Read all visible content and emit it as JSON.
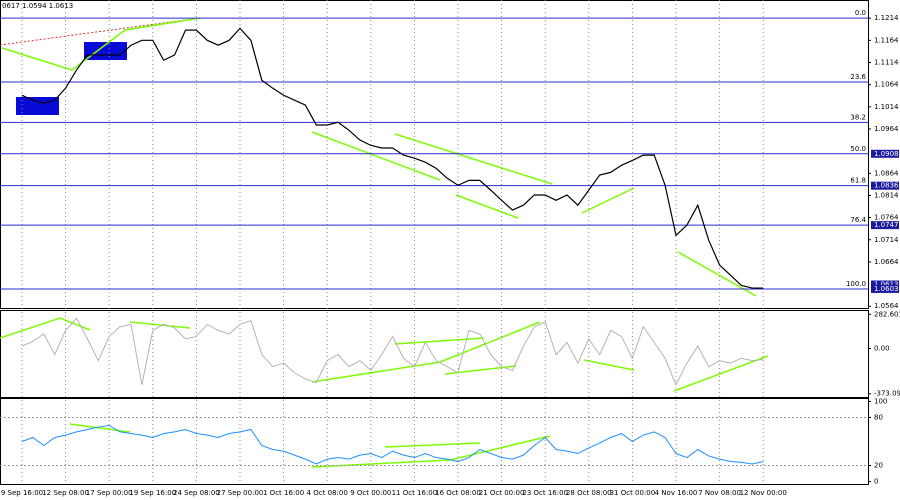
{
  "chart_data": [
    {
      "type": "line",
      "title": "0617 1.0594 1.0613",
      "color": "#000000",
      "categories": [
        "9 Sep 16:00",
        null,
        null,
        null,
        "12 Sep 08:00",
        null,
        null,
        null,
        "17 Sep 00:00",
        null,
        null,
        null,
        "19 Sep 16:00",
        null,
        null,
        null,
        "24 Sep 08:00",
        null,
        null,
        null,
        "27 Sep 00:00",
        null,
        null,
        null,
        "1 Oct 16:00",
        null,
        null,
        null,
        "4 Oct 08:00",
        null,
        null,
        null,
        "9 Oct 00:00",
        null,
        null,
        null,
        "11 Oct 16:00",
        null,
        null,
        null,
        "16 Oct 08:00",
        null,
        null,
        null,
        "21 Oct 00:00",
        null,
        null,
        null,
        "23 Oct 16:00",
        null,
        null,
        null,
        "28 Oct 08:00",
        null,
        null,
        null,
        "31 Oct 00:00",
        null,
        null,
        null,
        "4 Nov 16:00",
        null,
        null,
        null,
        "7 Nov 08:00",
        null,
        null,
        null,
        "12 Nov 00:00"
      ],
      "values": [
        1.104,
        1.1029,
        1.1022,
        1.1029,
        1.1056,
        1.1097,
        1.1131,
        1.1131,
        1.1131,
        1.1131,
        1.1153,
        1.1164,
        1.1164,
        1.1119,
        1.1131,
        1.1187,
        1.1187,
        1.1164,
        1.1153,
        1.1164,
        1.1191,
        1.1164,
        1.1074,
        1.1056,
        1.104,
        1.1029,
        1.1018,
        1.0973,
        1.0973,
        1.0979,
        1.0961,
        1.0939,
        1.0927,
        1.0921,
        1.0921,
        1.0905,
        1.0898,
        1.0889,
        1.0875,
        1.0853,
        1.0837,
        1.0848,
        1.0848,
        1.0826,
        1.0803,
        1.0781,
        1.0792,
        1.0815,
        1.0815,
        1.0803,
        1.0815,
        1.0792,
        1.0826,
        1.086,
        1.0866,
        1.0882,
        1.0893,
        1.0905,
        1.0905,
        1.0837,
        1.0724,
        1.0747,
        1.0792,
        1.0713,
        1.0657,
        1.0634,
        1.0611,
        1.0605,
        1.0605
      ],
      "ylim": [
        1.056,
        1.1255
      ],
      "yticks": [
        1.1214,
        1.1164,
        1.1114,
        1.1064,
        1.1014,
        1.0964,
        1.0864,
        1.0814,
        1.0764,
        1.0714,
        1.0664,
        1.0564
      ],
      "levels": [
        {
          "value": 1.1214,
          "label": "0.0"
        },
        {
          "value": 1.107,
          "label": "23.6"
        },
        {
          "value": 1.0979,
          "label": "38.2"
        },
        {
          "value": 1.0908,
          "label": "50.0"
        },
        {
          "value": 1.0836,
          "label": "61.8"
        },
        {
          "value": 1.0747,
          "label": "76.4"
        },
        {
          "value": 1.0603,
          "label": "100.0"
        }
      ],
      "level_color": "#2a2ad0",
      "markers": [
        1.0908,
        1.0836,
        1.0747,
        1.0613,
        1.0603
      ]
    },
    {
      "type": "line",
      "color": "#b4b4b4",
      "values": [
        20,
        60,
        120,
        -50,
        150,
        250,
        80,
        -100,
        100,
        180,
        200,
        -300,
        150,
        200,
        170,
        80,
        100,
        200,
        150,
        120,
        200,
        230,
        -50,
        -150,
        -120,
        -200,
        -250,
        -280,
        -100,
        -50,
        -150,
        -100,
        -180,
        -50,
        100,
        -80,
        -150,
        50,
        -100,
        -150,
        -200,
        150,
        120,
        -50,
        -150,
        -180,
        20,
        180,
        220,
        -50,
        50,
        -120,
        80,
        -50,
        150,
        100,
        -80,
        180,
        50,
        -80,
        -300,
        -120,
        20,
        -150,
        -100,
        -120,
        -80,
        -100,
        -90
      ],
      "ylim": [
        -400,
        310
      ],
      "yticks": [
        282.6012,
        {
          "value": 0,
          "label": "0.00"
        },
        -373.097
      ]
    },
    {
      "type": "line",
      "color": "#1e90ff",
      "values": [
        50,
        55,
        45,
        55,
        58,
        62,
        65,
        68,
        70,
        62,
        60,
        58,
        55,
        60,
        62,
        65,
        60,
        58,
        55,
        60,
        62,
        65,
        45,
        40,
        38,
        33,
        28,
        22,
        28,
        30,
        28,
        33,
        35,
        30,
        38,
        33,
        30,
        35,
        30,
        28,
        25,
        30,
        40,
        35,
        30,
        28,
        33,
        45,
        55,
        40,
        38,
        35,
        42,
        48,
        55,
        60,
        50,
        58,
        62,
        55,
        35,
        30,
        40,
        32,
        28,
        25,
        24,
        22,
        25
      ],
      "ylim": [
        -3,
        103
      ],
      "yticks": [
        100,
        80,
        20,
        0
      ]
    }
  ]
}
